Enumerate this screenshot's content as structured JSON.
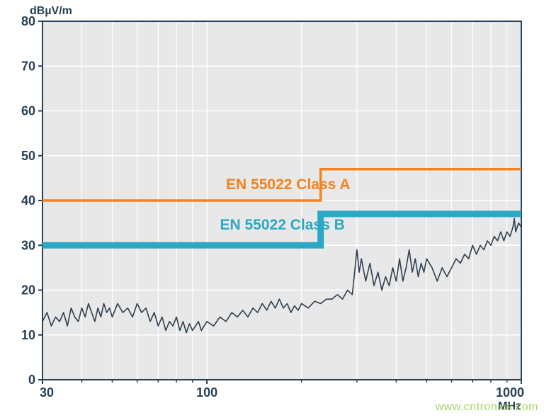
{
  "chart": {
    "type": "line",
    "y_axis": {
      "label": "dBµV/m",
      "min": 0,
      "max": 80,
      "tick_step": 10,
      "ticks": [
        0,
        10,
        20,
        30,
        40,
        50,
        60,
        70,
        80
      ],
      "scale": "linear"
    },
    "x_axis": {
      "label": "MHz",
      "min": 30,
      "max": 1000,
      "ticks": [
        30,
        100,
        1000
      ],
      "scale": "log"
    },
    "plot_background": "#e8e8e8",
    "page_background": "#ffffff",
    "grid_color": "#ffffff",
    "axis_color": "#274055",
    "tick_font_size": 18,
    "axis_label_font_size": 16,
    "series_label_font_size": 21,
    "limit_lines": {
      "class_a": {
        "label": "EN 55022 Class A",
        "color": "#f58220",
        "stroke_width": 3.5,
        "step_freq": 230,
        "low_value": 40,
        "high_value": 47,
        "label_pos_freq": 115,
        "label_pos_db": 42.5
      },
      "class_b": {
        "label": "EN 55022 Class B",
        "color": "#2aa8c4",
        "stroke_width": 9,
        "step_freq": 230,
        "low_value": 30,
        "high_value": 37,
        "label_pos_freq": 110,
        "label_pos_db": 33.5
      }
    },
    "measured": {
      "color": "#2e3f4f",
      "stroke_width": 1.6,
      "points": [
        [
          30,
          13
        ],
        [
          31,
          15
        ],
        [
          32,
          12
        ],
        [
          33,
          14
        ],
        [
          34,
          13
        ],
        [
          35,
          15
        ],
        [
          36,
          12
        ],
        [
          37,
          16
        ],
        [
          38,
          14
        ],
        [
          39,
          13
        ],
        [
          40,
          16
        ],
        [
          41,
          14
        ],
        [
          42,
          17
        ],
        [
          43,
          15
        ],
        [
          44,
          13
        ],
        [
          45,
          16
        ],
        [
          46,
          14
        ],
        [
          47,
          17
        ],
        [
          48,
          15
        ],
        [
          49,
          16
        ],
        [
          50,
          14
        ],
        [
          52,
          17
        ],
        [
          54,
          15
        ],
        [
          56,
          16
        ],
        [
          58,
          14
        ],
        [
          60,
          17
        ],
        [
          62,
          15
        ],
        [
          64,
          16
        ],
        [
          66,
          13
        ],
        [
          68,
          15
        ],
        [
          70,
          12
        ],
        [
          72,
          14
        ],
        [
          74,
          11
        ],
        [
          76,
          13
        ],
        [
          78,
          12
        ],
        [
          80,
          14
        ],
        [
          82,
          11
        ],
        [
          84,
          13
        ],
        [
          86,
          10.5
        ],
        [
          88,
          12.5
        ],
        [
          90,
          11
        ],
        [
          92,
          12
        ],
        [
          94,
          13
        ],
        [
          96,
          11
        ],
        [
          98,
          12
        ],
        [
          100,
          13
        ],
        [
          105,
          12
        ],
        [
          110,
          14
        ],
        [
          115,
          13
        ],
        [
          120,
          15
        ],
        [
          125,
          14
        ],
        [
          130,
          15.5
        ],
        [
          135,
          14
        ],
        [
          140,
          16
        ],
        [
          145,
          15
        ],
        [
          150,
          17
        ],
        [
          155,
          15.5
        ],
        [
          160,
          17.5
        ],
        [
          165,
          16
        ],
        [
          170,
          18
        ],
        [
          175,
          16
        ],
        [
          180,
          17
        ],
        [
          185,
          15
        ],
        [
          190,
          16.5
        ],
        [
          195,
          15.5
        ],
        [
          200,
          17
        ],
        [
          210,
          16
        ],
        [
          220,
          17.5
        ],
        [
          230,
          17
        ],
        [
          240,
          18
        ],
        [
          250,
          18
        ],
        [
          260,
          19
        ],
        [
          270,
          18
        ],
        [
          280,
          20
        ],
        [
          290,
          19
        ],
        [
          300,
          29
        ],
        [
          305,
          24
        ],
        [
          310,
          27
        ],
        [
          320,
          22
        ],
        [
          330,
          26
        ],
        [
          340,
          21
        ],
        [
          350,
          24
        ],
        [
          360,
          20
        ],
        [
          370,
          23
        ],
        [
          380,
          21
        ],
        [
          390,
          25
        ],
        [
          400,
          22
        ],
        [
          410,
          27
        ],
        [
          420,
          22
        ],
        [
          430,
          25
        ],
        [
          440,
          29
        ],
        [
          450,
          24
        ],
        [
          460,
          27
        ],
        [
          470,
          23
        ],
        [
          480,
          26
        ],
        [
          490,
          24
        ],
        [
          500,
          27
        ],
        [
          520,
          25
        ],
        [
          540,
          22
        ],
        [
          560,
          25
        ],
        [
          580,
          23
        ],
        [
          600,
          25
        ],
        [
          620,
          27
        ],
        [
          640,
          26
        ],
        [
          660,
          28
        ],
        [
          680,
          27
        ],
        [
          700,
          30
        ],
        [
          720,
          28
        ],
        [
          740,
          30
        ],
        [
          760,
          29
        ],
        [
          780,
          31
        ],
        [
          800,
          30
        ],
        [
          820,
          32
        ],
        [
          840,
          31
        ],
        [
          860,
          33
        ],
        [
          880,
          31
        ],
        [
          900,
          33
        ],
        [
          920,
          32
        ],
        [
          940,
          34
        ],
        [
          950,
          36
        ],
        [
          960,
          33
        ],
        [
          980,
          35
        ],
        [
          1000,
          34
        ]
      ]
    },
    "watermark": "www.cntronics.com"
  }
}
